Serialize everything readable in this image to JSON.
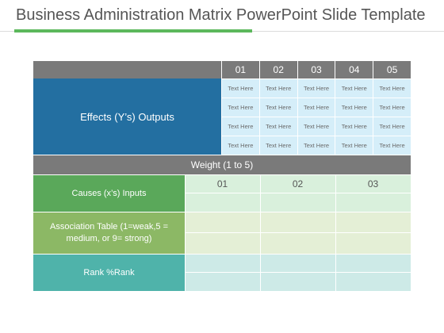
{
  "title": "Business Administration Matrix PowerPoint Slide Template",
  "header_columns": [
    "01",
    "02",
    "03",
    "04",
    "05"
  ],
  "effects_label": "Effects (Y’s) Outputs",
  "cell_text": "Text Here",
  "weight_label": "Weight (1 to 5)",
  "causes_label": "Causes (x’s) Inputs",
  "association_label": "Association Table (1=weak,5 = medium, or 9= strong)",
  "rank_label": "Rank    %Rank",
  "lower_columns": [
    "01",
    "02",
    "03"
  ],
  "colors": {
    "accent": "#5cb85c",
    "header_grey": "#7a7a7a",
    "effects_blue": "#236fa1",
    "cell_blue": "#d5eef9",
    "causes_green": "#5aa85a",
    "association_green": "#8cb865",
    "rank_teal": "#4fb3aa"
  }
}
